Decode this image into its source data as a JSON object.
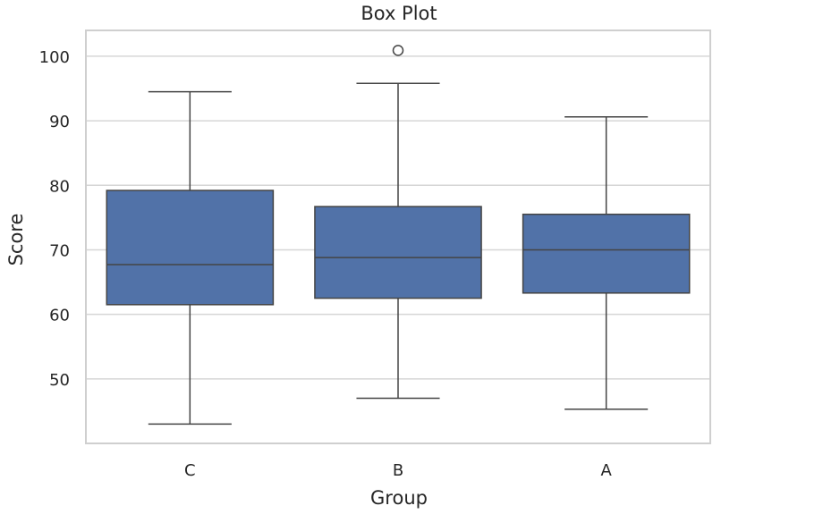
{
  "chart_data": {
    "type": "box",
    "title": "Box Plot",
    "xlabel": "Group",
    "ylabel": "Score",
    "categories": [
      "C",
      "B",
      "A"
    ],
    "ylim": [
      40,
      104
    ],
    "yticks": [
      50,
      60,
      70,
      80,
      90,
      100
    ],
    "grid": true,
    "legend": "none",
    "box_color": "#5172a8",
    "line_color": "#444444",
    "grid_color": "#d6d6d6",
    "boxes": [
      {
        "category": "C",
        "whisker_low": 43.0,
        "q1": 61.5,
        "median": 67.7,
        "q3": 79.2,
        "whisker_high": 94.5,
        "outliers": []
      },
      {
        "category": "B",
        "whisker_low": 47.0,
        "q1": 62.5,
        "median": 68.8,
        "q3": 76.7,
        "whisker_high": 95.8,
        "outliers": [
          100.9
        ]
      },
      {
        "category": "A",
        "whisker_low": 45.3,
        "q1": 63.3,
        "median": 70.0,
        "q3": 75.5,
        "whisker_high": 90.6,
        "outliers": []
      }
    ]
  }
}
